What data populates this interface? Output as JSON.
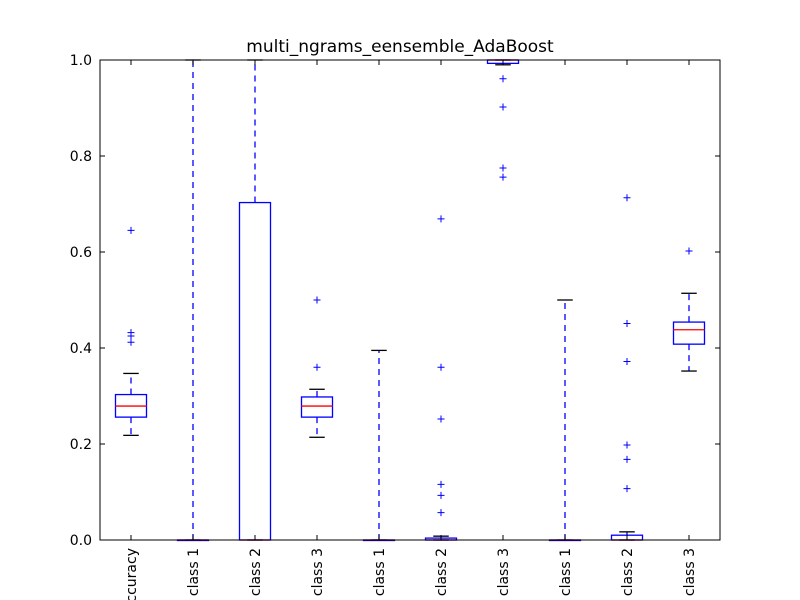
{
  "chart_data": {
    "type": "box",
    "title": "multi_ngrams_eensemble_AdaBoost",
    "ylim": [
      0,
      1
    ],
    "yticks": [
      "0.0",
      "0.2",
      "0.4",
      "0.6",
      "0.8",
      "1.0"
    ],
    "categories": [
      "accuracy",
      "class 1",
      "class 2",
      "class 3",
      "class 1",
      "class 2",
      "class 3",
      "class 1",
      "class 2",
      "class 3"
    ],
    "boxes": [
      {
        "whisker_low": 0.218,
        "q1": 0.256,
        "median": 0.279,
        "q3": 0.303,
        "whisker_high": 0.347,
        "outliers": [
          0.412,
          0.425,
          0.432,
          0.645
        ]
      },
      {
        "whisker_low": 0.0,
        "q1": 0.0,
        "median": 0.0,
        "q3": 0.0,
        "whisker_high": 1.0,
        "outliers": []
      },
      {
        "whisker_low": 0.0,
        "q1": 0.0,
        "median": 0.0,
        "q3": 0.703,
        "whisker_high": 1.0,
        "outliers": []
      },
      {
        "whisker_low": 0.214,
        "q1": 0.256,
        "median": 0.279,
        "q3": 0.298,
        "whisker_high": 0.314,
        "outliers": [
          0.36,
          0.5
        ]
      },
      {
        "whisker_low": 0.0,
        "q1": 0.0,
        "median": 0.0,
        "q3": 0.0,
        "whisker_high": 0.395,
        "outliers": []
      },
      {
        "whisker_low": 0.0,
        "q1": 0.0,
        "median": 0.0,
        "q3": 0.004,
        "whisker_high": 0.008,
        "outliers": [
          0.057,
          0.093,
          0.116,
          0.252,
          0.36,
          0.669
        ]
      },
      {
        "whisker_low": 0.99,
        "q1": 0.993,
        "median": 1.0,
        "q3": 1.0,
        "whisker_high": 1.0,
        "outliers": [
          0.756,
          0.775,
          0.902,
          0.961
        ]
      },
      {
        "whisker_low": 0.0,
        "q1": 0.0,
        "median": 0.0,
        "q3": 0.0,
        "whisker_high": 0.5,
        "outliers": []
      },
      {
        "whisker_low": 0.0,
        "q1": 0.0,
        "median": 0.0,
        "q3": 0.01,
        "whisker_high": 0.017,
        "outliers": [
          0.107,
          0.168,
          0.198,
          0.372,
          0.451,
          0.713
        ]
      },
      {
        "whisker_low": 0.352,
        "q1": 0.408,
        "median": 0.438,
        "q3": 0.454,
        "whisker_high": 0.514,
        "outliers": [
          0.602
        ]
      }
    ],
    "colors": {
      "box": "#0000ff",
      "median": "#ff0000",
      "cap": "#000000",
      "axes": "#000000"
    }
  }
}
